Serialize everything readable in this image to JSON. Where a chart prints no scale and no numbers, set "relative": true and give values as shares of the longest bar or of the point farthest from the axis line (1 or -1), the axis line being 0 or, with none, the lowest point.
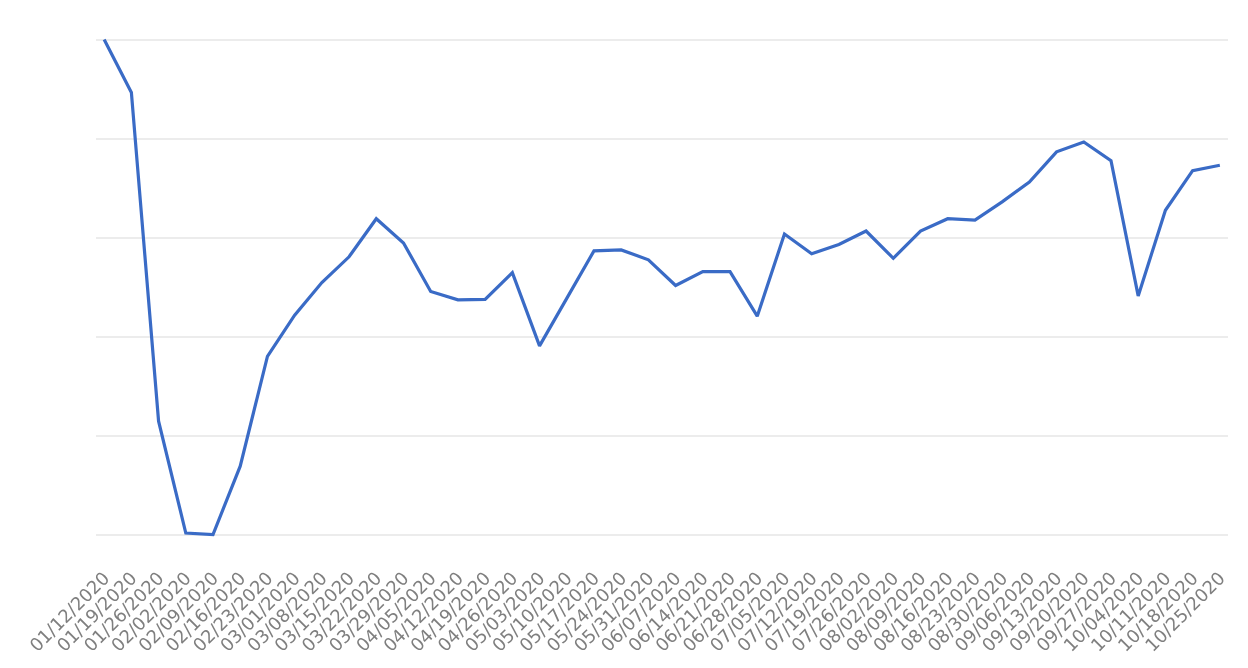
{
  "chart_data": {
    "type": "line",
    "relative": true,
    "grid": "y",
    "color": "#3a6bc6",
    "categories": [
      "01/12/2020",
      "01/19/2020",
      "01/26/2020",
      "02/02/2020",
      "02/09/2020",
      "02/16/2020",
      "02/23/2020",
      "03/01/2020",
      "03/08/2020",
      "03/15/2020",
      "03/22/2020",
      "03/29/2020",
      "04/05/2020",
      "04/12/2020",
      "04/19/2020",
      "04/26/2020",
      "05/03/2020",
      "05/10/2020",
      "05/17/2020",
      "05/24/2020",
      "05/31/2020",
      "06/07/2020",
      "06/14/2020",
      "06/21/2020",
      "06/28/2020",
      "07/05/2020",
      "07/12/2020",
      "07/19/2020",
      "07/26/2020",
      "08/02/2020",
      "08/09/2020",
      "08/16/2020",
      "08/23/2020",
      "08/30/2020",
      "09/06/2020",
      "09/13/2020",
      "09/20/2020",
      "09/27/2020",
      "10/04/2020",
      "10/11/2020",
      "10/18/2020",
      "10/25/2020"
    ],
    "values": [
      1.0,
      0.893,
      0.229,
      0.003,
      0,
      0.138,
      0.36,
      0.443,
      0.509,
      0.561,
      0.638,
      0.589,
      0.491,
      0.474,
      0.475,
      0.529,
      0.381,
      0.477,
      0.573,
      0.575,
      0.555,
      0.503,
      0.531,
      0.531,
      0.441,
      0.607,
      0.567,
      0.586,
      0.613,
      0.558,
      0.613,
      0.638,
      0.635,
      0.672,
      0.712,
      0.773,
      0.793,
      0.755,
      0.482,
      0.655,
      0.735,
      0.746
    ]
  }
}
